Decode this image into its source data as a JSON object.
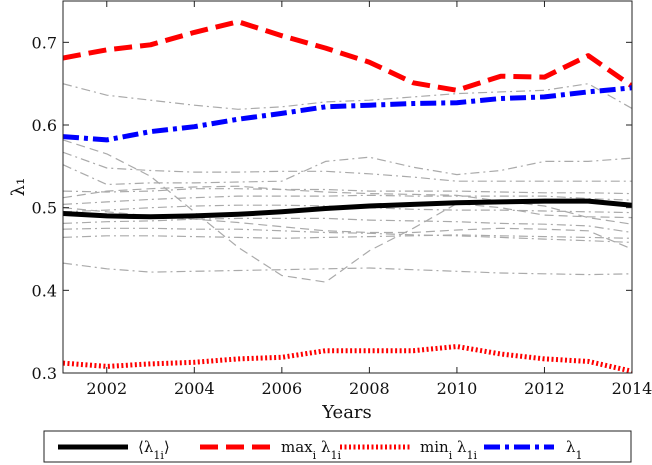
{
  "chart_data": {
    "type": "line",
    "title": "",
    "xlabel": "Years",
    "ylabel": "λ₁",
    "xlim": [
      2001,
      2014
    ],
    "ylim": [
      0.3,
      0.75
    ],
    "x_ticks": [
      2002,
      2004,
      2006,
      2008,
      2010,
      2012,
      2014
    ],
    "x_tick_labels": [
      "2002",
      "2004",
      "2006",
      "2008",
      "2010",
      "2012",
      "2014"
    ],
    "y_ticks": [
      0.3,
      0.4,
      0.5,
      0.6,
      0.7
    ],
    "y_tick_labels": [
      "0.3",
      "0.4",
      "0.5",
      "0.6",
      "0.7"
    ],
    "grid": false,
    "legend_position": "bottom",
    "x": [
      2001,
      2002,
      2003,
      2004,
      2005,
      2006,
      2007,
      2008,
      2009,
      2010,
      2011,
      2012,
      2013,
      2014
    ],
    "series": [
      {
        "name": "⟨λ1i⟩",
        "color": "#000000",
        "style": "solid",
        "values": [
          0.493,
          0.49,
          0.489,
          0.49,
          0.492,
          0.495,
          0.499,
          0.502,
          0.504,
          0.506,
          0.507,
          0.508,
          0.508,
          0.503
        ]
      },
      {
        "name": "maxi λ1i",
        "color": "#ff0000",
        "style": "dashed",
        "values": [
          0.681,
          0.691,
          0.697,
          0.712,
          0.725,
          0.708,
          0.693,
          0.676,
          0.651,
          0.642,
          0.659,
          0.658,
          0.684,
          0.647
        ]
      },
      {
        "name": "mini λ1i",
        "color": "#ff0000",
        "style": "dotted",
        "values": [
          0.312,
          0.308,
          0.311,
          0.313,
          0.317,
          0.319,
          0.327,
          0.327,
          0.327,
          0.332,
          0.323,
          0.317,
          0.314,
          0.302
        ]
      },
      {
        "name": "λ1",
        "color": "#0000ff",
        "style": "dashdot",
        "values": [
          0.586,
          0.582,
          0.592,
          0.598,
          0.607,
          0.614,
          0.622,
          0.624,
          0.626,
          0.627,
          0.632,
          0.634,
          0.64,
          0.645
        ]
      }
    ],
    "background_series": [
      {
        "color": "#aaaaaa",
        "style": "dashdot",
        "values": [
          0.65,
          0.636,
          0.63,
          0.624,
          0.619,
          0.622,
          0.628,
          0.63,
          0.634,
          0.638,
          0.64,
          0.642,
          0.65,
          0.62
        ]
      },
      {
        "color": "#aaaaaa",
        "style": "dashdot",
        "values": [
          0.567,
          0.548,
          0.545,
          0.543,
          0.543,
          0.544,
          0.544,
          0.541,
          0.537,
          0.532,
          0.532,
          0.532,
          0.532,
          0.532
        ]
      },
      {
        "color": "#aaaaaa",
        "style": "dashdot",
        "values": [
          0.552,
          0.528,
          0.53,
          0.53,
          0.531,
          0.532,
          0.556,
          0.561,
          0.549,
          0.54,
          0.545,
          0.556,
          0.556,
          0.56
        ]
      },
      {
        "color": "#aaaaaa",
        "style": "dashdot",
        "values": [
          0.52,
          0.519,
          0.52,
          0.523,
          0.523,
          0.522,
          0.522,
          0.52,
          0.52,
          0.52,
          0.519,
          0.518,
          0.518,
          0.517
        ]
      },
      {
        "color": "#aaaaaa",
        "style": "dashdot",
        "values": [
          0.504,
          0.507,
          0.51,
          0.512,
          0.514,
          0.514,
          0.514,
          0.515,
          0.514,
          0.514,
          0.514,
          0.514,
          0.511,
          0.509
        ]
      },
      {
        "color": "#aaaaaa",
        "style": "dashdot",
        "values": [
          0.495,
          0.497,
          0.5,
          0.502,
          0.503,
          0.503,
          0.502,
          0.5,
          0.498,
          0.497,
          0.497,
          0.496,
          0.495,
          0.494
        ]
      },
      {
        "color": "#aaaaaa",
        "style": "dashdot",
        "values": [
          0.481,
          0.483,
          0.484,
          0.486,
          0.487,
          0.487,
          0.487,
          0.485,
          0.484,
          0.483,
          0.481,
          0.48,
          0.478,
          0.47
        ]
      },
      {
        "color": "#aaaaaa",
        "style": "dashdot",
        "values": [
          0.474,
          0.475,
          0.475,
          0.474,
          0.474,
          0.472,
          0.47,
          0.469,
          0.467,
          0.466,
          0.464,
          0.462,
          0.46,
          0.458
        ]
      },
      {
        "color": "#aaaaaa",
        "style": "dashdot",
        "values": [
          0.464,
          0.466,
          0.466,
          0.465,
          0.464,
          0.463,
          0.464,
          0.465,
          0.466,
          0.467,
          0.466,
          0.465,
          0.464,
          0.463
        ]
      },
      {
        "color": "#aaaaaa",
        "style": "dashdot",
        "values": [
          0.433,
          0.426,
          0.422,
          0.423,
          0.424,
          0.425,
          0.426,
          0.427,
          0.425,
          0.423,
          0.421,
          0.42,
          0.419,
          0.42
        ]
      },
      {
        "color": "#aaaaaa",
        "style": "dashed",
        "values": [
          0.582,
          0.565,
          0.538,
          0.495,
          0.452,
          0.418,
          0.41,
          0.448,
          0.475,
          0.505,
          0.5,
          0.491,
          0.489,
          0.488
        ]
      },
      {
        "color": "#aaaaaa",
        "style": "dashed",
        "values": [
          0.512,
          0.52,
          0.523,
          0.525,
          0.526,
          0.522,
          0.519,
          0.517,
          0.516,
          0.515,
          0.508,
          0.502,
          0.488,
          0.48
        ]
      },
      {
        "color": "#aaaaaa",
        "style": "dashed",
        "values": [
          0.5,
          0.495,
          0.49,
          0.486,
          0.482,
          0.477,
          0.472,
          0.47,
          0.47,
          0.473,
          0.475,
          0.474,
          0.472,
          0.45
        ]
      }
    ],
    "legend_entries": [
      {
        "label_main": "⟨λ",
        "label_sub": "1i",
        "label_suffix": "⟩",
        "series": 0
      },
      {
        "label_main": "max",
        "label_sub": "i",
        "label_mid": " λ",
        "label_sub2": "1i",
        "series": 1
      },
      {
        "label_main": "min",
        "label_sub": "i",
        "label_mid": " λ",
        "label_sub2": "1i",
        "series": 2
      },
      {
        "label_main": "λ",
        "label_sub": "1",
        "series": 3
      }
    ]
  }
}
